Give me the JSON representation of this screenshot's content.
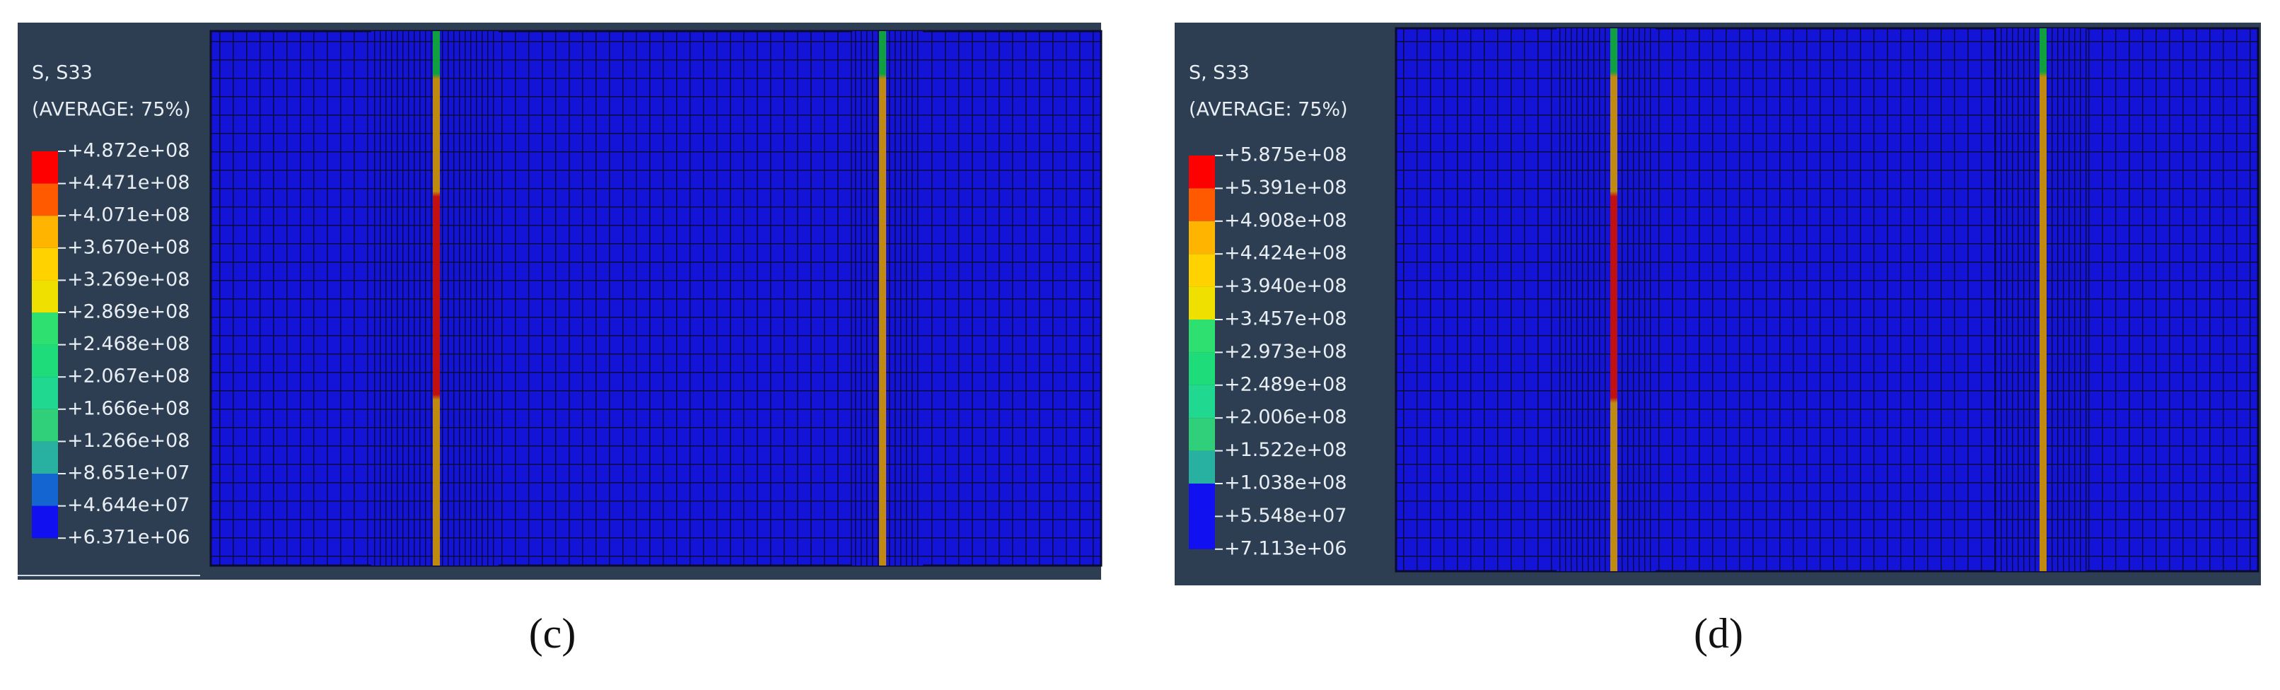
{
  "panels": [
    {
      "caption": "(c)",
      "legend": {
        "title": "S, S33",
        "subtitle": "(AVERAGE: 75%)",
        "labels": [
          "+4.872e+08",
          "+4.471e+08",
          "+4.071e+08",
          "+3.670e+08",
          "+3.269e+08",
          "+2.869e+08",
          "+2.468e+08",
          "+2.067e+08",
          "+1.666e+08",
          "+1.266e+08",
          "+8.651e+07",
          "+4.644e+07",
          "+6.371e+06"
        ],
        "colors": [
          "#ff0000",
          "#ff5a00",
          "#ffb400",
          "#ffd200",
          "#f0e000",
          "#2ee070",
          "#1edc7a",
          "#20d890",
          "#30d07a",
          "#28b0a0",
          "#1464d2",
          "#1010f0"
        ]
      }
    },
    {
      "caption": "(d)",
      "legend": {
        "title": "S, S33",
        "subtitle": "(AVERAGE: 75%)",
        "labels": [
          "+5.875e+08",
          "+5.391e+08",
          "+4.908e+08",
          "+4.424e+08",
          "+3.940e+08",
          "+3.457e+08",
          "+2.973e+08",
          "+2.489e+08",
          "+2.006e+08",
          "+1.522e+08",
          "+1.038e+08",
          "+5.548e+07",
          "+7.113e+06"
        ],
        "colors": [
          "#ff0000",
          "#ff5a00",
          "#ffb400",
          "#ffd200",
          "#f0e000",
          "#2ee070",
          "#1edc7a",
          "#20d890",
          "#30d07a",
          "#28b0a0",
          "#1010f0",
          "#1010f0"
        ]
      }
    }
  ]
}
